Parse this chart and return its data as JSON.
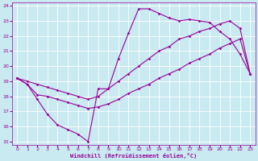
{
  "xlabel": "Windchill (Refroidissement éolien,°C)",
  "bg_color": "#c8eaf0",
  "grid_color": "#ffffff",
  "line_color": "#990099",
  "xlim": [
    -0.5,
    23.5
  ],
  "ylim": [
    14.8,
    24.2
  ],
  "xticks": [
    0,
    1,
    2,
    3,
    4,
    5,
    6,
    7,
    8,
    9,
    10,
    11,
    12,
    13,
    14,
    15,
    16,
    17,
    18,
    19,
    20,
    21,
    22,
    23
  ],
  "yticks": [
    15,
    16,
    17,
    18,
    19,
    20,
    21,
    22,
    23,
    24
  ],
  "line1_x": [
    0,
    1,
    2,
    3,
    4,
    5,
    6,
    7,
    8,
    9,
    10,
    11,
    12,
    13,
    14,
    15,
    16,
    17,
    18,
    19,
    20,
    21,
    22,
    23
  ],
  "line1_y": [
    19.2,
    18.8,
    17.8,
    16.8,
    16.1,
    15.8,
    15.5,
    15.0,
    18.5,
    18.5,
    20.5,
    22.2,
    23.8,
    23.8,
    23.5,
    23.2,
    23.0,
    23.1,
    23.0,
    22.9,
    22.3,
    21.8,
    20.8,
    19.5
  ],
  "line2_x": [
    0,
    1,
    2,
    3,
    4,
    5,
    6,
    7,
    8,
    9,
    10,
    11,
    12,
    13,
    14,
    15,
    16,
    17,
    18,
    19,
    20,
    21,
    22,
    23
  ],
  "line2_y": [
    19.2,
    18.8,
    18.1,
    18.0,
    17.8,
    17.6,
    17.4,
    17.2,
    17.3,
    17.5,
    17.8,
    18.2,
    18.5,
    18.8,
    19.2,
    19.5,
    19.8,
    20.2,
    20.5,
    20.8,
    21.2,
    21.5,
    21.8,
    19.5
  ],
  "line3_x": [
    0,
    1,
    2,
    3,
    4,
    5,
    6,
    7,
    8,
    9,
    10,
    11,
    12,
    13,
    14,
    15,
    16,
    17,
    18,
    19,
    20,
    21,
    22,
    23
  ],
  "line3_y": [
    19.2,
    19.0,
    18.8,
    18.6,
    18.4,
    18.2,
    18.0,
    17.8,
    18.0,
    18.5,
    19.0,
    19.5,
    20.0,
    20.5,
    21.0,
    21.3,
    21.8,
    22.0,
    22.3,
    22.5,
    22.8,
    23.0,
    22.5,
    19.5
  ]
}
